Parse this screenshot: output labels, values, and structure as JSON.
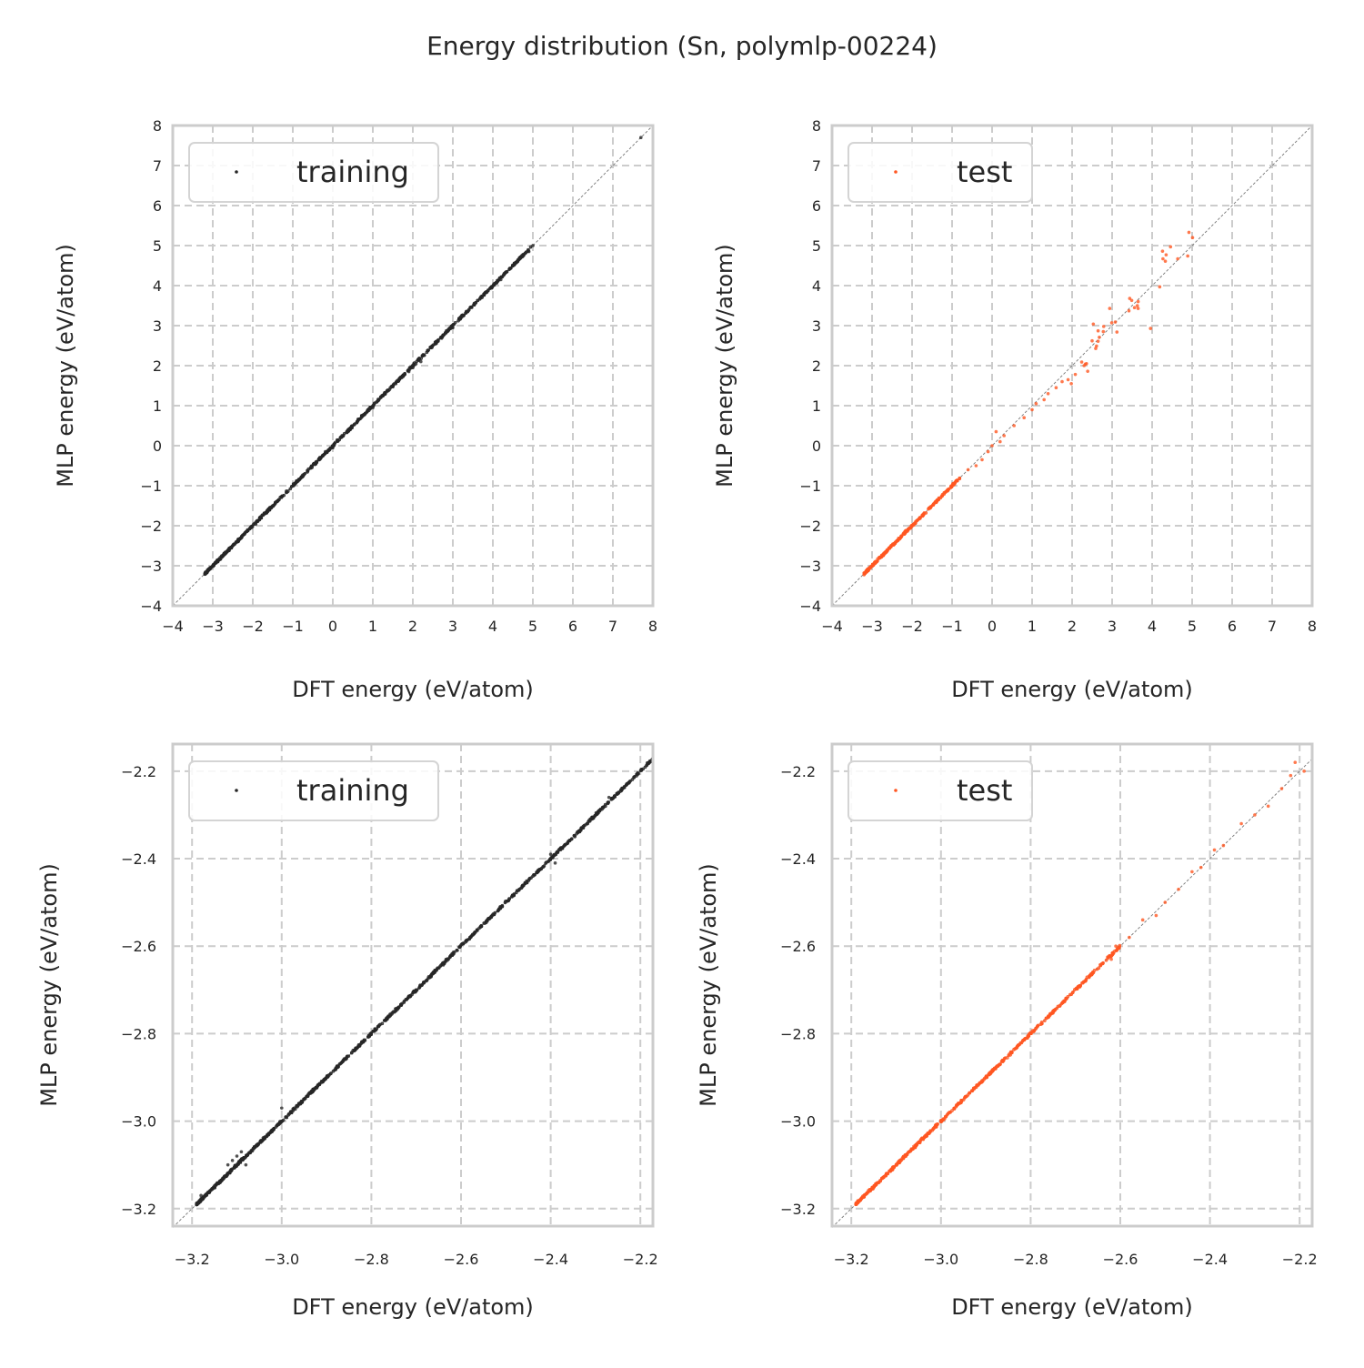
{
  "title": "Energy distribution (Sn, polymlp-00224)",
  "colors": {
    "training": "#262626",
    "test": "#ff5722",
    "grid": "#cccccc",
    "diagonal": "#777777"
  },
  "chart_data": [
    {
      "type": "scatter",
      "panel": "top-left",
      "series_name": "training",
      "legend": "training",
      "legend_placement": "top-left",
      "xlabel": "DFT energy (eV/atom)",
      "ylabel": "MLP energy (eV/atom)",
      "xlim": [
        -4,
        8
      ],
      "ylim": [
        -4,
        8
      ],
      "xticks": [
        -4,
        -3,
        -2,
        -1,
        0,
        1,
        2,
        3,
        4,
        5,
        6,
        7,
        8
      ],
      "yticks": [
        -4,
        -3,
        -2,
        -1,
        0,
        1,
        2,
        3,
        4,
        5,
        6,
        7,
        8
      ],
      "tick_labels": [
        "−4",
        "−3",
        "−2",
        "−1",
        "0",
        "1",
        "2",
        "3",
        "4",
        "5",
        "6",
        "7",
        "8"
      ],
      "grid": true,
      "dense_band": {
        "x_from": -3.2,
        "x_to": 5.0,
        "spread": 0.04,
        "count": 700
      },
      "points": [
        [
          7.7,
          7.7
        ],
        [
          5.0,
          5.0
        ],
        [
          4.9,
          4.85
        ],
        [
          4.2,
          4.15
        ],
        [
          3.0,
          2.95
        ],
        [
          2.0,
          1.95
        ],
        [
          1.9,
          1.85
        ],
        [
          1.0,
          0.95
        ],
        [
          0.0,
          -0.05
        ],
        [
          2.2,
          2.1
        ]
      ]
    },
    {
      "type": "scatter",
      "panel": "top-right",
      "series_name": "test",
      "legend": "test",
      "legend_placement": "top-left",
      "xlabel": "DFT energy (eV/atom)",
      "ylabel": "MLP energy (eV/atom)",
      "xlim": [
        -4,
        8
      ],
      "ylim": [
        -4,
        8
      ],
      "xticks": [
        -4,
        -3,
        -2,
        -1,
        0,
        1,
        2,
        3,
        4,
        5,
        6,
        7,
        8
      ],
      "yticks": [
        -4,
        -3,
        -2,
        -1,
        0,
        1,
        2,
        3,
        4,
        5,
        6,
        7,
        8
      ],
      "tick_labels": [
        "−4",
        "−3",
        "−2",
        "−1",
        "0",
        "1",
        "2",
        "3",
        "4",
        "5",
        "6",
        "7",
        "8"
      ],
      "grid": true,
      "dense_band": {
        "x_from": -3.2,
        "x_to": -0.8,
        "spread": 0.04,
        "count": 250
      },
      "points": [
        [
          4.92,
          5.33
        ],
        [
          5.01,
          5.2
        ],
        [
          4.46,
          4.97
        ],
        [
          4.26,
          4.86
        ],
        [
          4.35,
          4.77
        ],
        [
          4.27,
          4.67
        ],
        [
          4.33,
          4.61
        ],
        [
          4.64,
          4.67
        ],
        [
          4.89,
          4.74
        ],
        [
          4.19,
          3.97
        ],
        [
          3.44,
          3.68
        ],
        [
          3.49,
          3.63
        ],
        [
          3.65,
          3.6
        ],
        [
          3.63,
          3.5
        ],
        [
          3.56,
          3.45
        ],
        [
          3.65,
          3.43
        ],
        [
          3.42,
          3.37
        ],
        [
          2.94,
          3.43
        ],
        [
          2.53,
          3.04
        ],
        [
          2.99,
          3.07
        ],
        [
          3.08,
          3.09
        ],
        [
          3.12,
          2.84
        ],
        [
          3.96,
          2.93
        ],
        [
          2.65,
          2.87
        ],
        [
          2.78,
          2.85
        ],
        [
          2.79,
          2.98
        ],
        [
          2.68,
          2.71
        ],
        [
          2.65,
          2.61
        ],
        [
          2.5,
          2.62
        ],
        [
          2.61,
          2.49
        ],
        [
          2.59,
          2.43
        ],
        [
          2.24,
          2.09
        ],
        [
          2.33,
          2.04
        ],
        [
          2.36,
          2.05
        ],
        [
          2.3,
          2.0
        ],
        [
          2.39,
          1.86
        ],
        [
          2.08,
          1.78
        ],
        [
          1.9,
          1.65
        ],
        [
          1.98,
          1.55
        ],
        [
          1.75,
          1.6
        ],
        [
          1.6,
          1.45
        ],
        [
          1.4,
          1.3
        ],
        [
          1.3,
          1.15
        ],
        [
          1.1,
          1.05
        ],
        [
          1.0,
          0.9
        ],
        [
          0.8,
          0.7
        ],
        [
          0.55,
          0.5
        ],
        [
          0.3,
          0.25
        ],
        [
          0.1,
          0.35
        ],
        [
          0.0,
          0.0
        ],
        [
          -0.1,
          -0.15
        ],
        [
          -0.25,
          -0.35
        ],
        [
          -0.4,
          -0.5
        ],
        [
          -0.6,
          -0.6
        ],
        [
          0.2,
          0.1
        ]
      ]
    },
    {
      "type": "scatter",
      "panel": "bottom-left",
      "series_name": "training",
      "legend": "training",
      "legend_placement": "top-left",
      "xlabel": "DFT energy (eV/atom)",
      "ylabel": "MLP energy (eV/atom)",
      "xlim": [
        -3.243,
        -2.172
      ],
      "ylim": [
        -3.24,
        -2.138
      ],
      "xticks": [
        -3.2,
        -3.0,
        -2.8,
        -2.6,
        -2.4,
        -2.2
      ],
      "yticks": [
        -3.2,
        -3.0,
        -2.8,
        -2.6,
        -2.4,
        -2.2
      ],
      "tick_labels": [
        "−3.2",
        "−3.0",
        "−2.8",
        "−2.6",
        "−2.4",
        "−2.2"
      ],
      "grid": true,
      "dense_band": {
        "x_from": -3.19,
        "x_to": -2.15,
        "spread": 0.004,
        "count": 900
      },
      "points": [
        [
          -3.1,
          -3.08
        ],
        [
          -3.09,
          -3.07
        ],
        [
          -3.11,
          -3.09
        ],
        [
          -3.08,
          -3.1
        ],
        [
          -3.12,
          -3.1
        ],
        [
          -2.4,
          -2.39
        ],
        [
          -2.39,
          -2.41
        ],
        [
          -2.27,
          -2.26
        ],
        [
          -3.0,
          -2.97
        ],
        [
          -3.18,
          -3.17
        ]
      ]
    },
    {
      "type": "scatter",
      "panel": "bottom-right",
      "series_name": "test",
      "legend": "test",
      "legend_placement": "top-left",
      "xlabel": "DFT energy (eV/atom)",
      "ylabel": "MLP energy (eV/atom)",
      "xlim": [
        -3.243,
        -2.172
      ],
      "ylim": [
        -3.24,
        -2.138
      ],
      "xticks": [
        -3.2,
        -3.0,
        -2.8,
        -2.6,
        -2.4,
        -2.2
      ],
      "yticks": [
        -3.2,
        -3.0,
        -2.8,
        -2.6,
        -2.4,
        -2.2
      ],
      "tick_labels": [
        "−3.2",
        "−3.0",
        "−2.8",
        "−2.6",
        "−2.4",
        "−2.2"
      ],
      "grid": true,
      "dense_band": {
        "x_from": -3.19,
        "x_to": -2.6,
        "spread": 0.004,
        "count": 500
      },
      "points": [
        [
          -2.58,
          -2.58
        ],
        [
          -2.55,
          -2.54
        ],
        [
          -2.5,
          -2.5
        ],
        [
          -2.47,
          -2.47
        ],
        [
          -2.44,
          -2.43
        ],
        [
          -2.42,
          -2.42
        ],
        [
          -2.39,
          -2.38
        ],
        [
          -2.37,
          -2.37
        ],
        [
          -2.33,
          -2.32
        ],
        [
          -2.3,
          -2.3
        ],
        [
          -2.27,
          -2.28
        ],
        [
          -2.24,
          -2.24
        ],
        [
          -2.22,
          -2.21
        ],
        [
          -2.19,
          -2.2
        ],
        [
          -2.16,
          -2.16
        ],
        [
          -2.15,
          -2.15
        ],
        [
          -2.21,
          -2.18
        ],
        [
          -2.52,
          -2.53
        ],
        [
          -2.61,
          -2.6
        ],
        [
          -2.62,
          -2.63
        ]
      ]
    }
  ]
}
